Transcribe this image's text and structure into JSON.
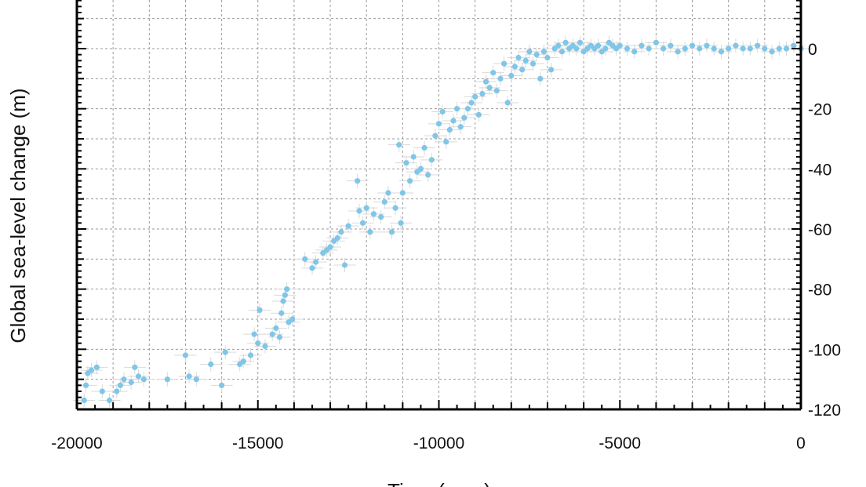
{
  "chart_data": {
    "type": "scatter",
    "title": "",
    "xlabel": "Time (year)",
    "ylabel": "Global sea-level change (m)",
    "xlim": [
      -20000,
      0
    ],
    "ylim": [
      -120,
      0
    ],
    "x_ticks": [
      -20000,
      -15000,
      -10000,
      -5000,
      0
    ],
    "x_tick_labels": [
      "-20000",
      "-15000",
      "-10000",
      "-5000",
      "0"
    ],
    "y_ticks": [
      0,
      -20,
      -40,
      -60,
      -80,
      -100,
      -120
    ],
    "y_tick_labels": [
      "0",
      "-20",
      "-40",
      "-60",
      "-80",
      "-100",
      "-120"
    ],
    "grid": true,
    "legend": "none",
    "colors": {
      "points": "#7fc6e8",
      "error_bars": "#d9d9d9",
      "grid": "#9a9a9a",
      "axes": "#000000"
    },
    "series": [
      {
        "points": [
          [
            -19800,
            -117
          ],
          [
            -19750,
            -112
          ],
          [
            -19700,
            -108
          ],
          [
            -19600,
            -107
          ],
          [
            -19450,
            -106
          ],
          [
            -19300,
            -114
          ],
          [
            -19100,
            -117
          ],
          [
            -18900,
            -114
          ],
          [
            -18800,
            -112
          ],
          [
            -18700,
            -110
          ],
          [
            -18500,
            -111
          ],
          [
            -18400,
            -106
          ],
          [
            -18300,
            -109
          ],
          [
            -18150,
            -110
          ],
          [
            -17500,
            -110
          ],
          [
            -17000,
            -102
          ],
          [
            -16900,
            -109
          ],
          [
            -16700,
            -110
          ],
          [
            -16300,
            -105
          ],
          [
            -16000,
            -112
          ],
          [
            -15900,
            -101
          ],
          [
            -15500,
            -105
          ],
          [
            -15400,
            -104
          ],
          [
            -15200,
            -102
          ],
          [
            -15100,
            -95
          ],
          [
            -15000,
            -98
          ],
          [
            -14950,
            -87
          ],
          [
            -14800,
            -99
          ],
          [
            -14600,
            -95
          ],
          [
            -14500,
            -93
          ],
          [
            -14400,
            -96
          ],
          [
            -14350,
            -88
          ],
          [
            -14300,
            -84
          ],
          [
            -14250,
            -82
          ],
          [
            -14200,
            -80
          ],
          [
            -14150,
            -91
          ],
          [
            -14050,
            -90
          ],
          [
            -13700,
            -70
          ],
          [
            -13500,
            -73
          ],
          [
            -13400,
            -71
          ],
          [
            -13200,
            -68
          ],
          [
            -13100,
            -67
          ],
          [
            -13000,
            -66
          ],
          [
            -12900,
            -64
          ],
          [
            -12800,
            -63
          ],
          [
            -12700,
            -61
          ],
          [
            -12600,
            -72
          ],
          [
            -12500,
            -59
          ],
          [
            -12250,
            -44
          ],
          [
            -12200,
            -54
          ],
          [
            -12100,
            -58
          ],
          [
            -12000,
            -53
          ],
          [
            -11900,
            -61
          ],
          [
            -11800,
            -55
          ],
          [
            -11600,
            -56
          ],
          [
            -11500,
            -51
          ],
          [
            -11400,
            -48
          ],
          [
            -11300,
            -61
          ],
          [
            -11200,
            -53
          ],
          [
            -11100,
            -32
          ],
          [
            -11050,
            -58
          ],
          [
            -11000,
            -48
          ],
          [
            -10900,
            -38
          ],
          [
            -10800,
            -44
          ],
          [
            -10700,
            -36
          ],
          [
            -10600,
            -41
          ],
          [
            -10500,
            -40
          ],
          [
            -10400,
            -33
          ],
          [
            -10300,
            -42
          ],
          [
            -10200,
            -37
          ],
          [
            -10100,
            -29
          ],
          [
            -10000,
            -25
          ],
          [
            -9900,
            -21
          ],
          [
            -9800,
            -31
          ],
          [
            -9700,
            -27
          ],
          [
            -9600,
            -24
          ],
          [
            -9500,
            -20
          ],
          [
            -9400,
            -26
          ],
          [
            -9300,
            -23
          ],
          [
            -9200,
            -20
          ],
          [
            -9100,
            -18
          ],
          [
            -9000,
            -16
          ],
          [
            -8900,
            -22
          ],
          [
            -8800,
            -15
          ],
          [
            -8700,
            -11
          ],
          [
            -8600,
            -13
          ],
          [
            -8500,
            -8
          ],
          [
            -8400,
            -14
          ],
          [
            -8300,
            -10
          ],
          [
            -8200,
            -5
          ],
          [
            -8100,
            -18
          ],
          [
            -8000,
            -9
          ],
          [
            -7900,
            -6
          ],
          [
            -7800,
            -3
          ],
          [
            -7700,
            -7
          ],
          [
            -7600,
            -4
          ],
          [
            -7500,
            -1
          ],
          [
            -7400,
            -5
          ],
          [
            -7300,
            -2
          ],
          [
            -7200,
            -10
          ],
          [
            -7100,
            -1
          ],
          [
            -7000,
            -3
          ],
          [
            -6900,
            -7
          ],
          [
            -6800,
            0
          ],
          [
            -6700,
            1
          ],
          [
            -6600,
            -1
          ],
          [
            -6500,
            2
          ],
          [
            -6400,
            0
          ],
          [
            -6300,
            1
          ],
          [
            -6200,
            0
          ],
          [
            -6100,
            2
          ],
          [
            -6000,
            -1
          ],
          [
            -5900,
            0
          ],
          [
            -5800,
            1
          ],
          [
            -5700,
            0
          ],
          [
            -5600,
            1
          ],
          [
            -5500,
            -1
          ],
          [
            -5400,
            0
          ],
          [
            -5300,
            2
          ],
          [
            -5200,
            1
          ],
          [
            -5100,
            0
          ],
          [
            -5000,
            1
          ],
          [
            -4800,
            0
          ],
          [
            -4600,
            -1
          ],
          [
            -4400,
            1
          ],
          [
            -4200,
            0
          ],
          [
            -4000,
            2
          ],
          [
            -3800,
            0
          ],
          [
            -3600,
            1
          ],
          [
            -3400,
            -1
          ],
          [
            -3200,
            0
          ],
          [
            -3000,
            1
          ],
          [
            -2800,
            0
          ],
          [
            -2600,
            1
          ],
          [
            -2400,
            0
          ],
          [
            -2200,
            -1
          ],
          [
            -2000,
            0
          ],
          [
            -1800,
            1
          ],
          [
            -1600,
            0
          ],
          [
            -1400,
            0
          ],
          [
            -1200,
            1
          ],
          [
            -1000,
            0
          ],
          [
            -800,
            -1
          ],
          [
            -600,
            0
          ],
          [
            -400,
            0
          ],
          [
            -200,
            1
          ],
          [
            0,
            0
          ]
        ]
      }
    ]
  }
}
